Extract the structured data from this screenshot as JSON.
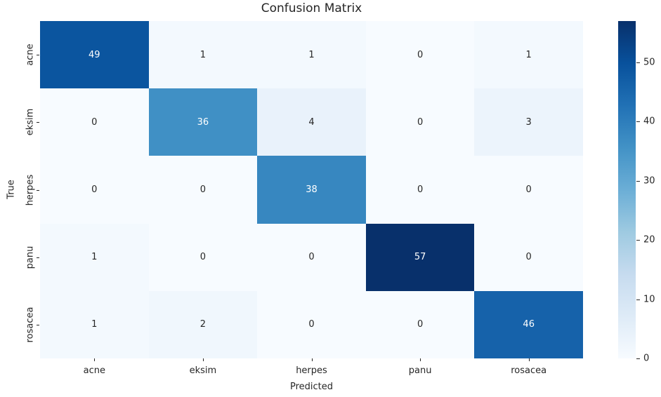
{
  "figure": {
    "background": "#ffffff",
    "text_color": "#262626"
  },
  "chart_data": {
    "type": "heatmap",
    "title": "Confusion Matrix",
    "xlabel": "Predicted",
    "ylabel": "True",
    "x_categories": [
      "acne",
      "eksim",
      "herpes",
      "panu",
      "rosacea"
    ],
    "y_categories": [
      "acne",
      "eksim",
      "herpes",
      "panu",
      "rosacea"
    ],
    "matrix": [
      [
        49,
        1,
        1,
        0,
        1
      ],
      [
        0,
        36,
        4,
        0,
        3
      ],
      [
        0,
        0,
        38,
        0,
        0
      ],
      [
        1,
        0,
        0,
        57,
        0
      ],
      [
        1,
        2,
        0,
        0,
        46
      ]
    ],
    "annotated": true,
    "colormap": "Blues",
    "vmin": 0,
    "vmax": 57,
    "colorbar_ticks": [
      0,
      10,
      20,
      30,
      40,
      50
    ],
    "legend_position": "colorbar-right",
    "grid": false,
    "colors": {
      "cmap_min": "#f7fbff",
      "cmap_max": "#08306b",
      "annot_dark_text": "#262626",
      "annot_light_text": "#ffffff"
    }
  }
}
